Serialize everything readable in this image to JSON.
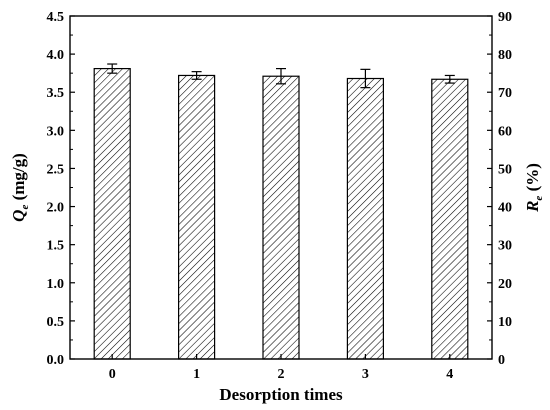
{
  "chart_data": {
    "type": "bar",
    "categories": [
      "0",
      "1",
      "2",
      "3",
      "4"
    ],
    "series": [
      {
        "values": [
          3.81,
          3.72,
          3.71,
          3.68,
          3.67
        ],
        "errors": [
          0.06,
          0.05,
          0.1,
          0.12,
          0.05
        ]
      }
    ],
    "xlabel": "Desorption times",
    "ylabel_main": "Q",
    "ylabel_sub": "e",
    "ylabel_unit": " (mg/g)",
    "y2label_main": "R",
    "y2label_sub": "e",
    "y2label_unit": " (%)",
    "ylim": [
      0,
      4.5
    ],
    "y2lim": [
      0,
      90
    ],
    "yticks": [
      "0.0",
      "0.5",
      "1.0",
      "1.5",
      "2.0",
      "2.5",
      "3.0",
      "3.5",
      "4.0",
      "4.5"
    ],
    "y2ticks": [
      "0",
      "10",
      "20",
      "30",
      "40",
      "50",
      "60",
      "70",
      "80",
      "90"
    ],
    "bar_pattern": "diagonal-hatch",
    "grid": false,
    "colors": {
      "bar_fill": "#ffffff",
      "hatch": "#000000",
      "axis": "#000000"
    }
  }
}
